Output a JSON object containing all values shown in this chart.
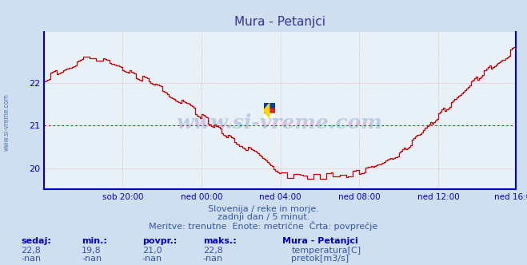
{
  "title": "Mura - Petanjci",
  "bg_color": "#d0dff0",
  "plot_bg_color": "#e8f0f8",
  "line_color": "#cc0000",
  "avg_line_color": "#cc0000",
  "axis_color": "#0000cc",
  "grid_color": "#dd8888",
  "text_color": "#3355aa",
  "subtitle_lines": [
    "Slovenija / reke in morje.",
    "zadnji dan / 5 minut.",
    "Meritve: trenutne  Enote: metrične  Črta: povprečje"
  ],
  "watermark": "www.si-vreme.com",
  "ylim": [
    19.5,
    23.2
  ],
  "yticks": [
    20,
    21,
    22
  ],
  "avg_value": 21.0,
  "xlabel_ticks": [
    "sob 20:00",
    "ned 00:00",
    "ned 04:00",
    "ned 08:00",
    "ned 12:00",
    "ned 16:00"
  ],
  "stats_labels": [
    "sedaj:",
    "min.:",
    "povpr.:",
    "maks.:"
  ],
  "stats_values_temp": [
    "22,8",
    "19,8",
    "21,0",
    "22,8"
  ],
  "stats_values_flow": [
    "-nan",
    "-nan",
    "-nan",
    "-nan"
  ],
  "legend_station": "Mura - Petanjci",
  "legend_temp_label": "temperatura[C]",
  "legend_flow_label": "pretok[m3/s]",
  "legend_temp_color": "#cc0000",
  "legend_flow_color": "#00aa00",
  "n_points": 288,
  "curve_t": [
    0,
    0.04,
    0.08,
    0.12,
    0.16,
    0.2,
    0.25,
    0.3,
    0.35,
    0.4,
    0.45,
    0.5,
    0.55,
    0.6,
    0.65,
    0.7,
    0.75,
    0.8,
    0.85,
    0.9,
    0.95,
    1.0
  ],
  "curve_v": [
    22.1,
    22.3,
    22.55,
    22.55,
    22.4,
    22.15,
    21.85,
    21.5,
    21.1,
    20.7,
    20.3,
    19.85,
    19.82,
    19.82,
    19.85,
    20.0,
    20.3,
    20.8,
    21.4,
    21.9,
    22.4,
    22.8
  ]
}
